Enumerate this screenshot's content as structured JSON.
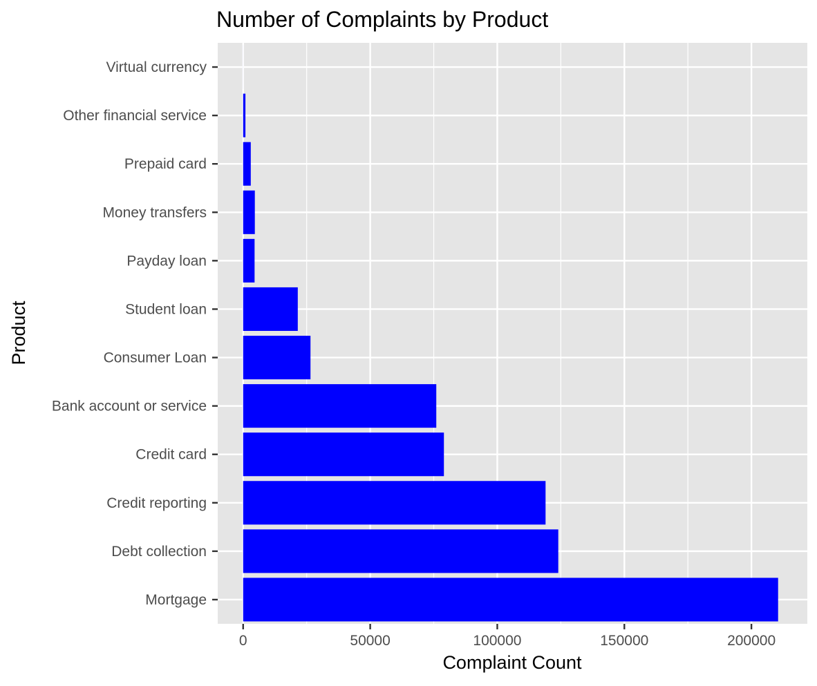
{
  "chart_data": {
    "type": "bar",
    "orientation": "horizontal",
    "title": "Number of Complaints by Product",
    "xlabel": "Complaint Count",
    "ylabel": "Product",
    "categories": [
      "Mortgage",
      "Debt collection",
      "Credit reporting",
      "Credit card",
      "Bank account or service",
      "Consumer Loan",
      "Student loan",
      "Payday loan",
      "Money transfers",
      "Prepaid card",
      "Other financial service",
      "Virtual currency"
    ],
    "values": [
      210500,
      124000,
      119000,
      79000,
      76000,
      26500,
      21500,
      4500,
      4600,
      3000,
      900,
      10
    ],
    "xlim": [
      -10000,
      222000
    ],
    "xticks": [
      0,
      50000,
      100000,
      150000,
      200000
    ],
    "xtick_labels": [
      "0",
      "50000",
      "100000",
      "150000",
      "200000"
    ],
    "grid": true,
    "legend": "none",
    "colors": {
      "bar": "#0000ff",
      "panel": "#e5e5e5",
      "grid": "#ffffff"
    }
  }
}
